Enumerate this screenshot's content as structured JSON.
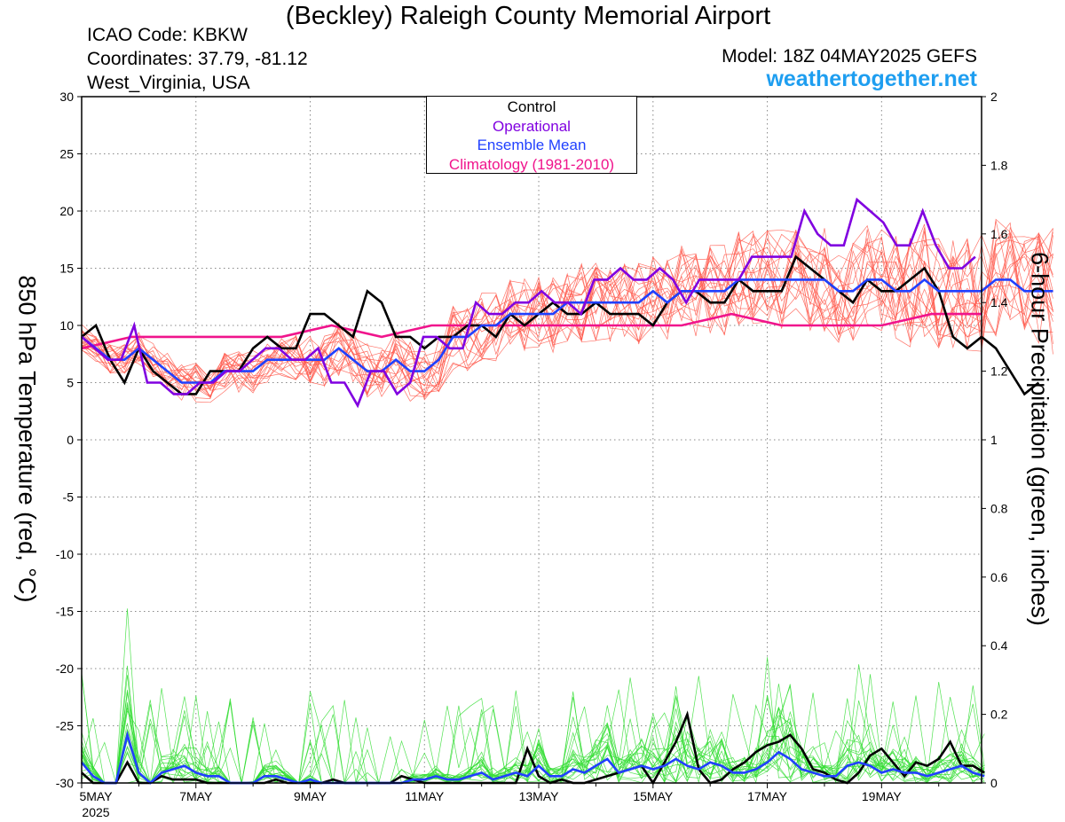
{
  "header": {
    "title": "(Beckley) Raleigh County Memorial Airport",
    "icao": "ICAO Code: KBKW",
    "coordinates": "Coordinates: 37.79, -81.12",
    "region": "West_Virginia, USA",
    "model": "Model: 18Z 04MAY2025 GEFS",
    "website": "weathertogether.net"
  },
  "colors": {
    "control": "#000000",
    "operational": "#8000e0",
    "ensemble_mean": "#2040ff",
    "climatology": "#f0148c",
    "members_temp": "#ff5a4e",
    "members_precip": "#33dd33",
    "website": "#1e9ef0"
  },
  "chart_data": {
    "type": "line",
    "ylabel": "850 hPa Temperature (red, °C)",
    "y2label": "6-hour Precipitation (green, inches)",
    "ylim": [
      -30,
      30
    ],
    "y2lim": [
      0,
      2
    ],
    "y_ticks": [
      "30",
      "25",
      "20",
      "15",
      "10",
      "5",
      "0",
      "-5",
      "-10",
      "-15",
      "-20",
      "-25",
      "-30"
    ],
    "y2_ticks": [
      "2",
      "1.8",
      "1.6",
      "1.4",
      "1.2",
      "1",
      "0.8",
      "0.6",
      "0.4",
      "0.2",
      "0"
    ],
    "x_ticks": [
      "5MAY",
      "7MAY",
      "9MAY",
      "11MAY",
      "13MAY",
      "15MAY",
      "17MAY",
      "19MAY"
    ],
    "x_year": "2025",
    "x_range_days": [
      5,
      20.75
    ],
    "grid": true,
    "legend_position": "top-center",
    "legend": [
      "Control",
      "Operational",
      "Ensemble Mean",
      "Climatology (1981-2010)"
    ],
    "temperature_series": [
      {
        "name": "Control",
        "values": [
          9,
          10,
          7,
          5,
          8,
          6,
          5,
          4,
          4,
          6,
          6,
          6,
          8,
          9,
          8,
          8,
          11,
          11,
          10,
          9,
          13,
          12,
          9,
          9,
          8,
          9,
          9,
          10,
          10,
          9,
          11,
          10,
          11,
          12,
          11,
          11,
          12,
          11,
          11,
          11,
          10,
          12,
          13,
          13,
          12,
          12,
          14,
          13,
          13,
          13,
          16,
          15,
          14,
          13,
          12,
          14,
          13,
          13,
          14,
          15,
          13,
          9,
          8,
          9,
          8,
          6,
          4,
          5
        ]
      },
      {
        "name": "Operational",
        "values": [
          9,
          8,
          7,
          7,
          10,
          5,
          5,
          4,
          4,
          5,
          5,
          6,
          6,
          7,
          8,
          8,
          7,
          7,
          8,
          5,
          5,
          3,
          6,
          6,
          4,
          5,
          9,
          9,
          8,
          8,
          12,
          11,
          11,
          12,
          12,
          13,
          12,
          12,
          11,
          14,
          14,
          15,
          14,
          14,
          15,
          14,
          12,
          14,
          14,
          14,
          14,
          16,
          16,
          16,
          16,
          20,
          18,
          17,
          17,
          21,
          20,
          19,
          17,
          17,
          20,
          17,
          15,
          15,
          16
        ]
      },
      {
        "name": "Ensemble Mean",
        "values": [
          9,
          8,
          7,
          7,
          8,
          7,
          6,
          5,
          5,
          5,
          6,
          6,
          6,
          7,
          7,
          7,
          7,
          7,
          8,
          7,
          6,
          6,
          7,
          6,
          6,
          7,
          9,
          9,
          10,
          10,
          11,
          11,
          11,
          11,
          12,
          12,
          12,
          12,
          12,
          12,
          13,
          12,
          13,
          13,
          13,
          13,
          14,
          14,
          14,
          14,
          14,
          14,
          14,
          13,
          13,
          14,
          14,
          13,
          13,
          14,
          13,
          13,
          13,
          13,
          14,
          14,
          13,
          13,
          13
        ]
      },
      {
        "name": "Climatology (1981-2010)",
        "values": [
          8,
          9,
          9,
          9,
          9,
          10,
          9,
          10,
          10,
          10,
          10,
          10,
          10,
          11,
          10,
          10,
          10,
          11,
          11
        ]
      }
    ],
    "precipitation_series": [
      {
        "name": "Control",
        "values": [
          0.03,
          0,
          0,
          0,
          0.06,
          0,
          0,
          0.02,
          0.01,
          0.01,
          0.01,
          0,
          0,
          0,
          0,
          0,
          0,
          0.01,
          0,
          0,
          0,
          0,
          0.01,
          0,
          0,
          0,
          0,
          0,
          0.02,
          0.01,
          0,
          0,
          0,
          0,
          0,
          0,
          0,
          0,
          0,
          0.1,
          0.02,
          0,
          0.01,
          0,
          0,
          0.01,
          0.02,
          0.03,
          0.04,
          0.05,
          0,
          0.06,
          0.12,
          0.2,
          0.04,
          0,
          0.01,
          0.04,
          0.06,
          0.09,
          0.11,
          0.12,
          0.14,
          0.1,
          0.04,
          0.03,
          0.01,
          0,
          0.03,
          0.08,
          0.1,
          0.06,
          0.02,
          0.06,
          0.05,
          0.07,
          0.12,
          0.05,
          0.05,
          0.03
        ]
      },
      {
        "name": "Ensemble Mean",
        "values": [
          0.06,
          0.02,
          0,
          0,
          0.14,
          0.03,
          0,
          0.03,
          0.04,
          0.05,
          0.03,
          0.02,
          0.02,
          0,
          0,
          0,
          0.02,
          0.02,
          0.01,
          0,
          0.01,
          0,
          0,
          0,
          0,
          0,
          0,
          0,
          0,
          0.01,
          0.01,
          0.02,
          0.01,
          0.01,
          0.02,
          0.03,
          0.01,
          0.02,
          0.03,
          0.02,
          0.05,
          0.02,
          0.02,
          0.04,
          0.03,
          0.05,
          0.07,
          0.03,
          0.04,
          0.05,
          0.04,
          0.05,
          0.07,
          0.05,
          0.04,
          0.06,
          0.05,
          0.03,
          0.03,
          0.04,
          0.06,
          0.09,
          0.07,
          0.04,
          0.03,
          0.02,
          0.02,
          0.05,
          0.06,
          0.05,
          0.03,
          0.04,
          0.03,
          0.03,
          0.02,
          0.03,
          0.04,
          0.05,
          0.03,
          0.02
        ]
      }
    ]
  }
}
